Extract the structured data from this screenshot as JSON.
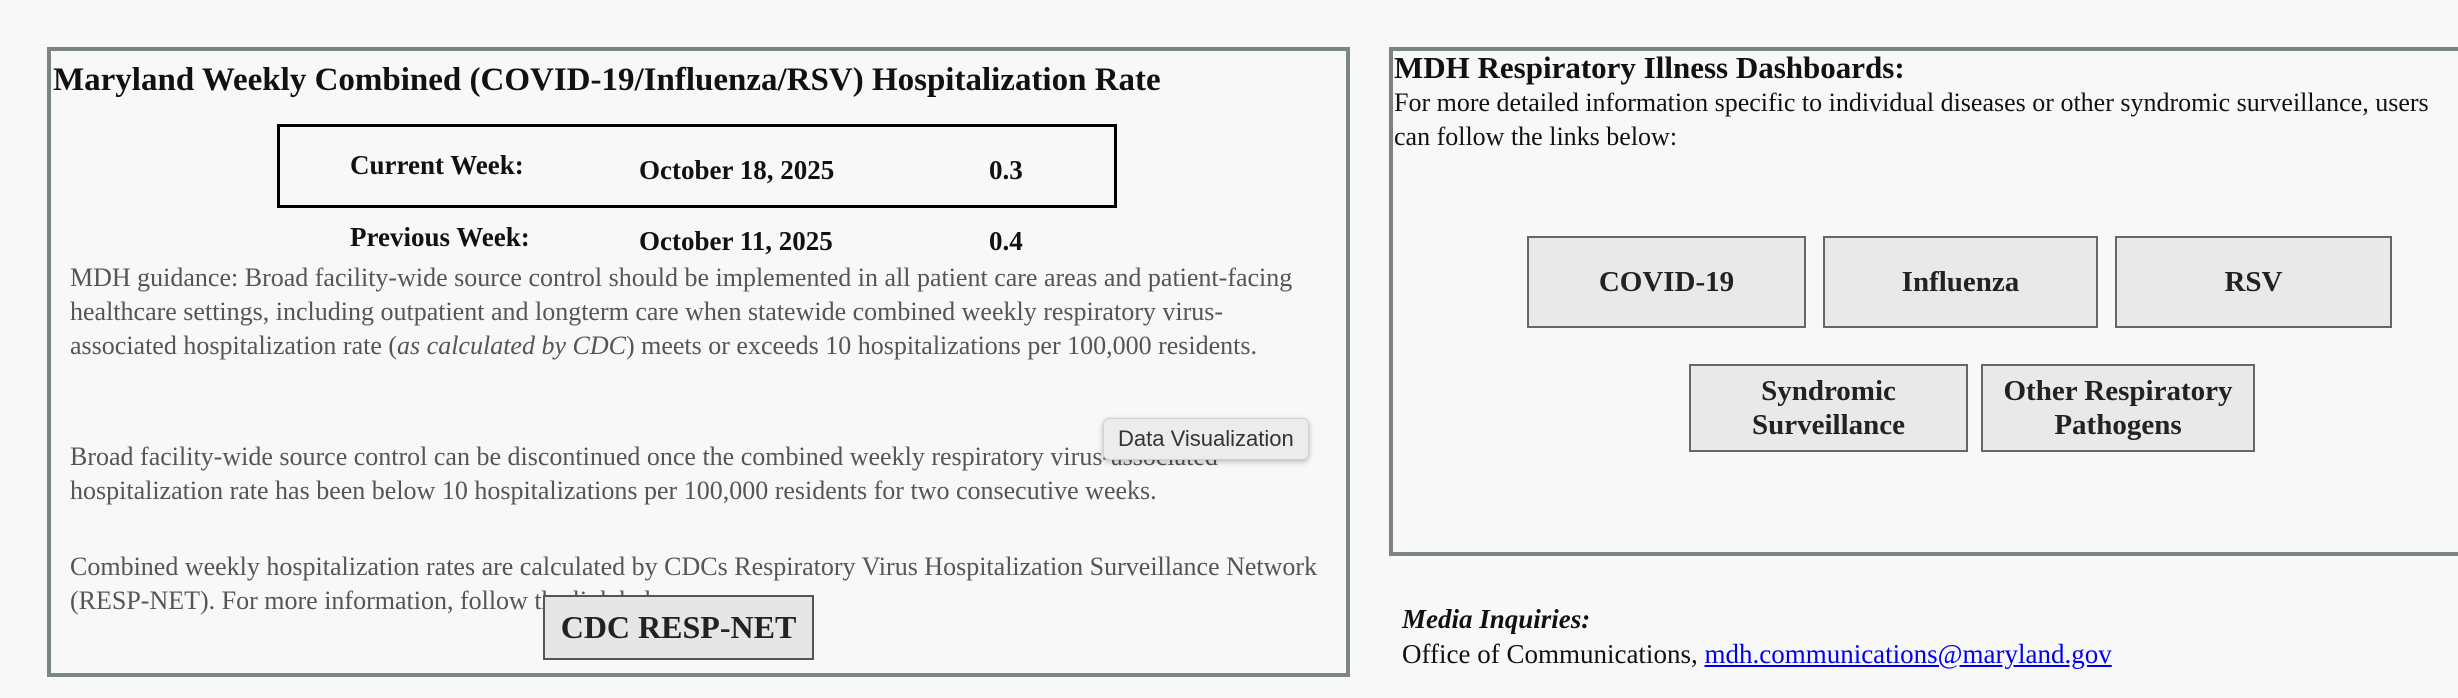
{
  "left_panel": {
    "title": "Maryland Weekly Combined (COVID-19/Influenza/RSV) Hospitalization Rate",
    "current_week": {
      "label": "Current Week:",
      "date": "October 18, 2025",
      "value": "0.3"
    },
    "previous_week": {
      "label": "Previous Week:",
      "date": "October 11, 2025",
      "value": "0.4"
    },
    "guidance": {
      "before": "MDH guidance: Broad facility-wide source control should be implemented in all patient care areas and patient-facing healthcare settings, including outpatient and longterm care when statewide combined weekly respiratory virus-associated hospitalization rate (",
      "italic": "as calculated by CDC",
      "after": ") meets or exceeds 10 hospitalizations per 100,000 residents."
    },
    "discontinue": "Broad facility-wide source control can be discontinued once the combined weekly respiratory virus-associated hospitalization rate has been below 10 hospitalizations per 100,000 residents for two consecutive weeks.",
    "calc_note": "Combined weekly hospitalization rates are calculated by CDCs Respiratory Virus Hospitalization Surveillance Network (RESP-NET). For more information, follow the link below.",
    "resp_net_button": "CDC RESP-NET",
    "tooltip": "Data Visualization"
  },
  "right_panel": {
    "title": "MDH Respiratory Illness Dashboards:",
    "description": "For more detailed information specific to individual diseases or other syndromic surveillance, users can follow the links below:",
    "buttons": {
      "covid": "COVID-19",
      "influenza": "Influenza",
      "rsv": "RSV",
      "syndromic_line1": "Syndromic",
      "syndromic_line2": "Surveillance",
      "other_line1": "Other Respiratory",
      "other_line2": "Pathogens"
    }
  },
  "media": {
    "label": "Media Inquiries:",
    "office": "Office of Communications, ",
    "email": "mdh.communications@maryland.gov"
  }
}
